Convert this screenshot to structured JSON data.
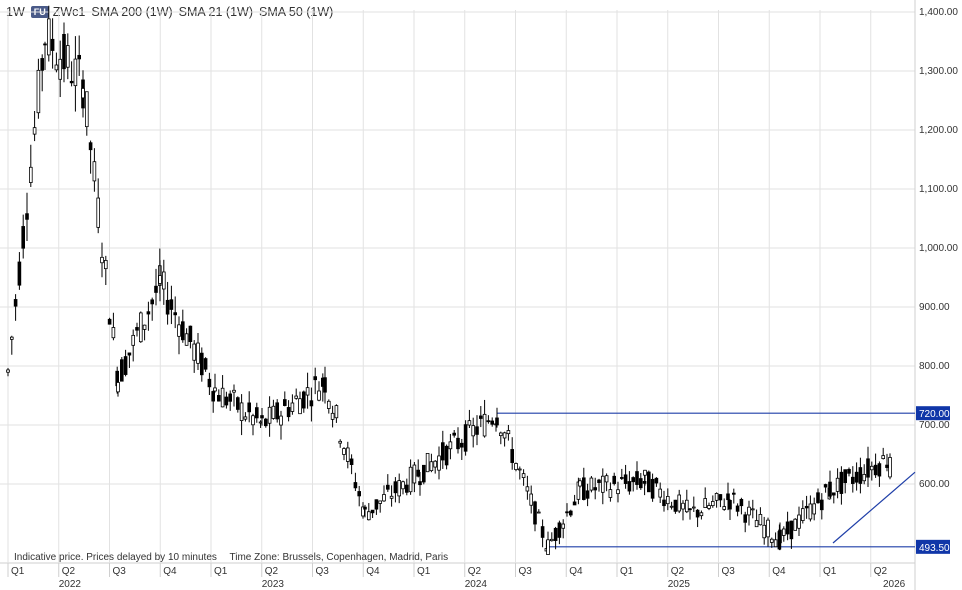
{
  "header": {
    "interval": "1W",
    "badge": "FU",
    "symbol": "ZWc1",
    "indicators": [
      "SMA 200 (1W)",
      "SMA 21 (1W)",
      "SMA 50 (1W)"
    ]
  },
  "footer": {
    "note": "Indicative price. Prices delayed by 10 minutes",
    "timezone": "Time Zone: Brussels, Copenhagen, Madrid, Paris"
  },
  "colors": {
    "candle": "#000000",
    "annotation": "#1f3fa8",
    "grid": "#e2e2e2"
  },
  "chart_data": {
    "type": "candlestick",
    "ylim": [
      480,
      1400
    ],
    "y_ticks": [
      "1,400.00",
      "1,300.00",
      "1,200.00",
      "1,100.00",
      "1,000.00",
      "900.00",
      "800.00",
      "700.00",
      "600.00"
    ],
    "y_tick_values": [
      1400,
      1300,
      1200,
      1100,
      1000,
      900,
      800,
      700,
      600
    ],
    "quarter_ticks": [
      "Q1",
      "Q2",
      "Q3",
      "Q4",
      "Q1",
      "Q2",
      "Q3",
      "Q4",
      "Q1",
      "Q2",
      "Q3",
      "Q4",
      "Q1",
      "Q2",
      "Q3",
      "Q4",
      "Q1",
      "Q2"
    ],
    "years": [
      "2022",
      "2023",
      "2024",
      "2025",
      "2026"
    ],
    "price_tags": [
      {
        "label": "720.00",
        "value": 720
      },
      {
        "label": "493.50",
        "value": 493.5
      }
    ],
    "support_line": {
      "value": 493.5,
      "from": "2024-Q3",
      "to": "2026-Q2"
    },
    "resistance_line": {
      "value": 720,
      "from": "2024-Q2",
      "to": "2026-Q2"
    },
    "trendline": {
      "from_value": 500,
      "to_value": 620
    },
    "key_points": [
      {
        "x": "2022-Q1 start",
        "close": 790
      },
      {
        "x": "2022-Q1 high",
        "close": 1360
      },
      {
        "x": "2022-Q2 high",
        "close": 1280
      },
      {
        "x": "2022-Q3",
        "close": 780
      },
      {
        "x": "2022-Q4",
        "close": 940
      },
      {
        "x": "2023-Q1",
        "close": 760
      },
      {
        "x": "2023-Q2",
        "close": 700
      },
      {
        "x": "2023-Q3 spike",
        "close": 775
      },
      {
        "x": "2023-Q4",
        "close": 550
      },
      {
        "x": "2024-Q1",
        "close": 620
      },
      {
        "x": "2024-Q2 peak",
        "close": 720
      },
      {
        "x": "2024-Q3 low",
        "close": 493.5
      },
      {
        "x": "2024-Q4",
        "close": 590
      },
      {
        "x": "2025-Q1",
        "close": 605
      },
      {
        "x": "2025-Q2",
        "close": 550
      },
      {
        "x": "2025-Q3",
        "close": 575
      },
      {
        "x": "2025-Q4 low",
        "close": 505
      },
      {
        "x": "2026-Q1",
        "close": 590
      },
      {
        "x": "2026-Q2 last",
        "close": 645
      }
    ]
  }
}
